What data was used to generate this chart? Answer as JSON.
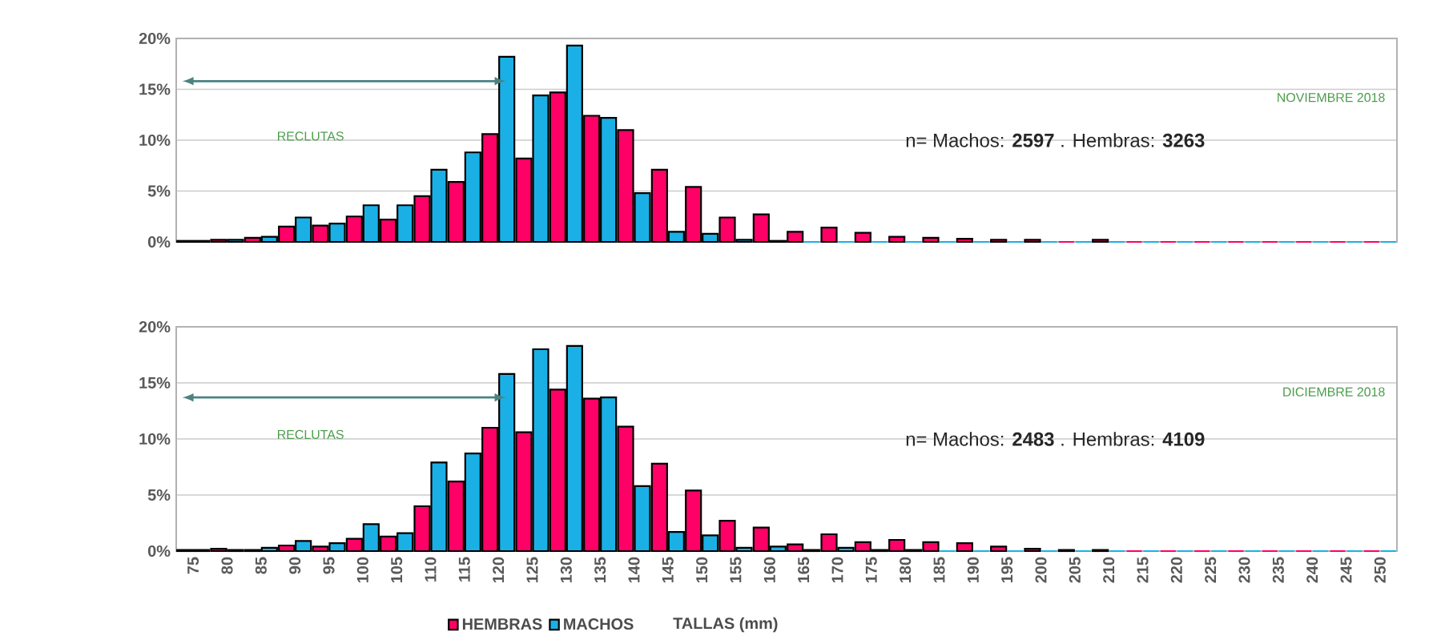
{
  "chart_data": [
    {
      "type": "bar",
      "categories": [
        "75",
        "80",
        "85",
        "90",
        "95",
        "100",
        "105",
        "110",
        "115",
        "120",
        "125",
        "130",
        "135",
        "140",
        "145",
        "150",
        "155",
        "160",
        "165",
        "170",
        "175",
        "180",
        "185",
        "190",
        "195",
        "200",
        "205",
        "210",
        "215",
        "220",
        "225",
        "230",
        "235",
        "240",
        "245",
        "250"
      ],
      "series": [
        {
          "color": "#ff0066",
          "values": [
            0.1,
            0.2,
            0.4,
            1.5,
            1.6,
            2.5,
            2.2,
            4.5,
            5.9,
            10.6,
            8.2,
            14.7,
            12.4,
            11.0,
            7.1,
            5.4,
            2.4,
            2.7,
            1.0,
            1.4,
            0.9,
            0.5,
            0.4,
            0.3,
            0.2,
            0.2,
            0,
            0.2,
            0,
            0,
            0,
            0,
            0,
            0,
            0,
            0
          ]
        },
        {
          "color": "#1ab0e6",
          "values": [
            0.1,
            0.2,
            0.5,
            2.4,
            1.8,
            3.6,
            3.6,
            7.1,
            8.8,
            18.2,
            14.4,
            19.3,
            12.2,
            4.8,
            1.0,
            0.8,
            0.2,
            0.1,
            0,
            0,
            0,
            0,
            0,
            0,
            0,
            0,
            0,
            0,
            0,
            0,
            0,
            0,
            0,
            0,
            0,
            0
          ]
        }
      ],
      "ylim": [
        0,
        20
      ],
      "yticks": [
        {
          "value": 0,
          "label": "0%"
        },
        {
          "value": 5,
          "label": "5%"
        },
        {
          "value": 10,
          "label": "10%"
        },
        {
          "value": 15,
          "label": "15%"
        },
        {
          "value": 20,
          "label": "20%"
        }
      ],
      "grid": "y",
      "legend": false,
      "tick_labels": "y",
      "annotations": [
        "RECLUTAS",
        "NOVIEMBRE 2018",
        "n= Machos: **2597** . Hembras: **3263**"
      ]
    },
    {
      "type": "bar",
      "categories": [
        "75",
        "80",
        "85",
        "90",
        "95",
        "100",
        "105",
        "110",
        "115",
        "120",
        "125",
        "130",
        "135",
        "140",
        "145",
        "150",
        "155",
        "160",
        "165",
        "170",
        "175",
        "180",
        "185",
        "190",
        "195",
        "200",
        "205",
        "210",
        "215",
        "220",
        "225",
        "230",
        "235",
        "240",
        "245",
        "250"
      ],
      "series": [
        {
          "name": "HEMBRAS",
          "color": "#ff0066",
          "values": [
            0.1,
            0.2,
            0.1,
            0.5,
            0.4,
            1.1,
            1.3,
            4.0,
            6.2,
            11.0,
            10.6,
            14.4,
            13.6,
            11.1,
            7.8,
            5.4,
            2.7,
            2.1,
            0.6,
            1.5,
            0.8,
            1.0,
            0.8,
            0.7,
            0.4,
            0.2,
            0.1,
            0.1,
            0,
            0,
            0,
            0,
            0,
            0,
            0,
            0
          ]
        },
        {
          "name": "MACHOS",
          "color": "#1ab0e6",
          "values": [
            0.1,
            0.1,
            0.3,
            0.9,
            0.7,
            2.4,
            1.6,
            7.9,
            8.7,
            15.8,
            18.0,
            18.3,
            13.7,
            5.8,
            1.7,
            1.4,
            0.3,
            0.4,
            0.1,
            0.3,
            0.1,
            0.1,
            0,
            0,
            0,
            0,
            0,
            0,
            0,
            0,
            0,
            0,
            0,
            0,
            0,
            0
          ]
        }
      ],
      "xlabel": "TALLAS (mm)",
      "ylim": [
        0,
        20
      ],
      "yticks": [
        {
          "value": 0,
          "label": "0%"
        },
        {
          "value": 5,
          "label": "5%"
        },
        {
          "value": 10,
          "label": "10%"
        },
        {
          "value": 15,
          "label": "15%"
        },
        {
          "value": 20,
          "label": "20%"
        }
      ],
      "grid": "y",
      "legend": "bottom",
      "annotations": [
        "RECLUTAS",
        "DICIEMBRE 2018",
        "n= Machos: **2483** . Hembras: **4109**"
      ]
    }
  ]
}
